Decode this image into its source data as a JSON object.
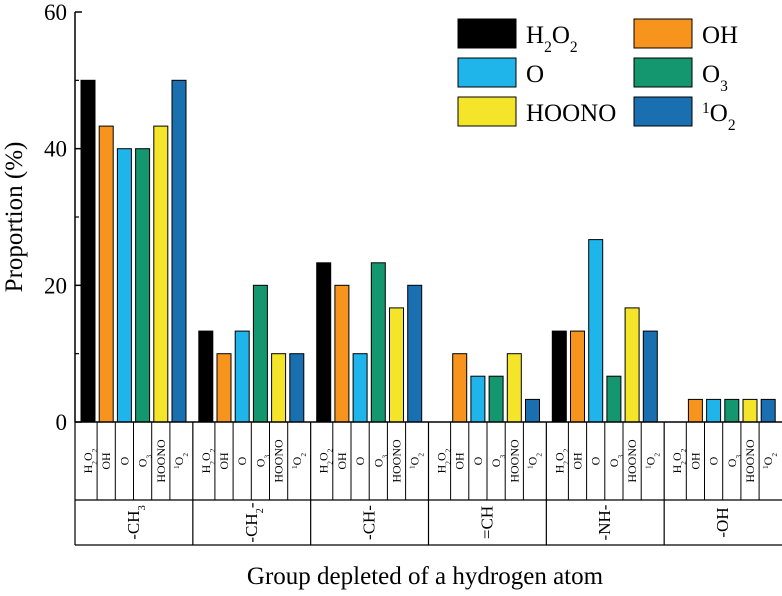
{
  "chart_data": {
    "type": "bar",
    "xlabel": "Group depleted of a hydrogen atom",
    "ylabel": "Proportion (%)",
    "ylim": [
      0,
      60
    ],
    "yticks": [
      0,
      20,
      40,
      60
    ],
    "grid": false,
    "legend_position": "top-right",
    "categories": [
      "-CH3",
      "-CH2-",
      "-CH-",
      "=CH",
      "-NH-",
      "-OH"
    ],
    "series": [
      {
        "name": "H2O2",
        "color": "#000000",
        "values": [
          50,
          13.3,
          23.3,
          0,
          13.3,
          0
        ]
      },
      {
        "name": "OH",
        "color": "#F7941D",
        "values": [
          43.3,
          10,
          20,
          10,
          13.3,
          3.3
        ]
      },
      {
        "name": "O",
        "color": "#1FB4EA",
        "values": [
          40,
          13.3,
          10,
          6.7,
          26.7,
          3.3
        ]
      },
      {
        "name": "O3",
        "color": "#14966E",
        "values": [
          40,
          20,
          23.3,
          6.7,
          6.7,
          3.3
        ]
      },
      {
        "name": "HOONO",
        "color": "#F5E52A",
        "values": [
          43.3,
          10,
          16.7,
          10,
          16.7,
          3.3
        ]
      },
      {
        "name": "1O2",
        "color": "#1A6FB0",
        "values": [
          50,
          10,
          20,
          3.3,
          13.3,
          3.3
        ]
      }
    ]
  }
}
